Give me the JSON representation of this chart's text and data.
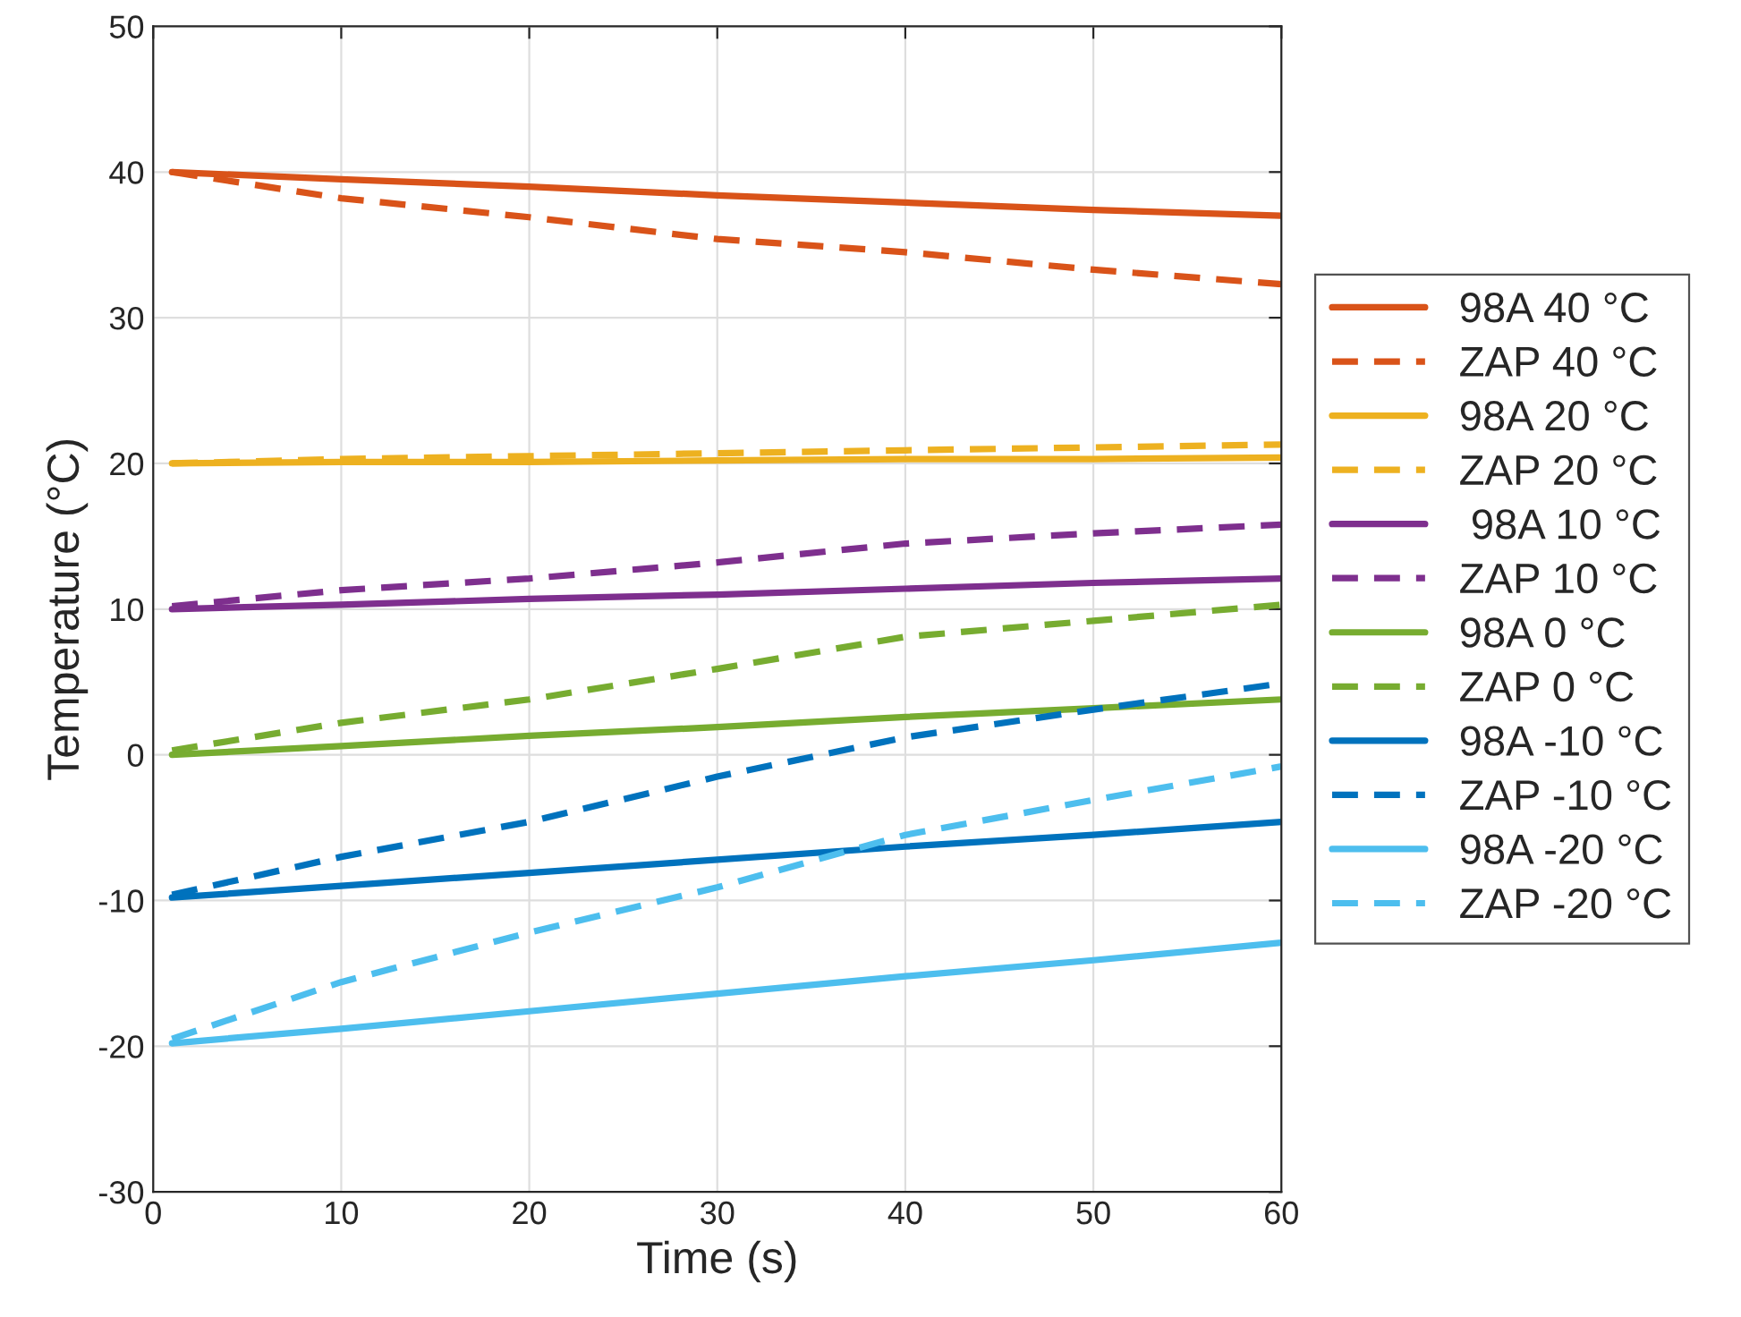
{
  "chart_data": {
    "type": "line",
    "xlabel": "Time (s)",
    "ylabel": "Temperature (°C)",
    "x": [
      1,
      10,
      20,
      30,
      40,
      50,
      60
    ],
    "xlim": [
      0,
      60
    ],
    "xticks": [
      0,
      10,
      20,
      30,
      40,
      50,
      60
    ],
    "ylim": [
      -30,
      50
    ],
    "yticks": [
      -30,
      -20,
      -10,
      0,
      10,
      20,
      30,
      40,
      50
    ],
    "grid": true,
    "legend": "right",
    "marker": "none",
    "series": [
      {
        "name": "98A 40 °C",
        "color": "#d95319",
        "line_style": "solid",
        "values": [
          40,
          39.5,
          39.0,
          38.4,
          37.9,
          37.4,
          37.0
        ]
      },
      {
        "name": "ZAP 40 °C",
        "color": "#d95319",
        "line_style": "dashed",
        "values": [
          40,
          38.2,
          36.9,
          35.4,
          34.5,
          33.3,
          32.3
        ]
      },
      {
        "name": "98A 20 °C",
        "color": "#edb120",
        "line_style": "solid",
        "values": [
          20,
          20.1,
          20.1,
          20.2,
          20.3,
          20.3,
          20.4
        ]
      },
      {
        "name": "ZAP 20 °C",
        "color": "#edb120",
        "line_style": "dashed",
        "values": [
          20,
          20.3,
          20.5,
          20.7,
          20.9,
          21.1,
          21.3
        ]
      },
      {
        "name": " 98A 10 °C",
        "color": "#7e2f8e",
        "line_style": "solid",
        "values": [
          10,
          10.3,
          10.7,
          11.0,
          11.4,
          11.8,
          12.1
        ]
      },
      {
        "name": "ZAP 10 °C",
        "color": "#7e2f8e",
        "line_style": "dashed",
        "values": [
          10.2,
          11.3,
          12.1,
          13.2,
          14.5,
          15.2,
          15.8
        ]
      },
      {
        "name": "98A 0 °C",
        "color": "#77ac30",
        "line_style": "solid",
        "values": [
          0,
          0.6,
          1.3,
          1.9,
          2.6,
          3.2,
          3.8
        ]
      },
      {
        "name": "ZAP 0 °C",
        "color": "#77ac30",
        "line_style": "dashed",
        "values": [
          0.3,
          2.2,
          3.8,
          5.9,
          8.1,
          9.2,
          10.3
        ]
      },
      {
        "name": "98A -10 °C",
        "color": "#0072bd",
        "line_style": "solid",
        "values": [
          -9.8,
          -9.0,
          -8.1,
          -7.2,
          -6.3,
          -5.5,
          -4.6
        ]
      },
      {
        "name": "ZAP -10 °C",
        "color": "#0072bd",
        "line_style": "dashed",
        "values": [
          -9.6,
          -7.0,
          -4.6,
          -1.5,
          1.2,
          3.1,
          4.9
        ]
      },
      {
        "name": "98A -20 °C",
        "color": "#4dbeee",
        "line_style": "solid",
        "values": [
          -19.8,
          -18.8,
          -17.6,
          -16.4,
          -15.2,
          -14.1,
          -12.9
        ]
      },
      {
        "name": "ZAP -20 °C",
        "color": "#4dbeee",
        "line_style": "dashed",
        "values": [
          -19.5,
          -15.6,
          -12.2,
          -9.1,
          -5.5,
          -3.1,
          -0.8
        ]
      }
    ]
  }
}
